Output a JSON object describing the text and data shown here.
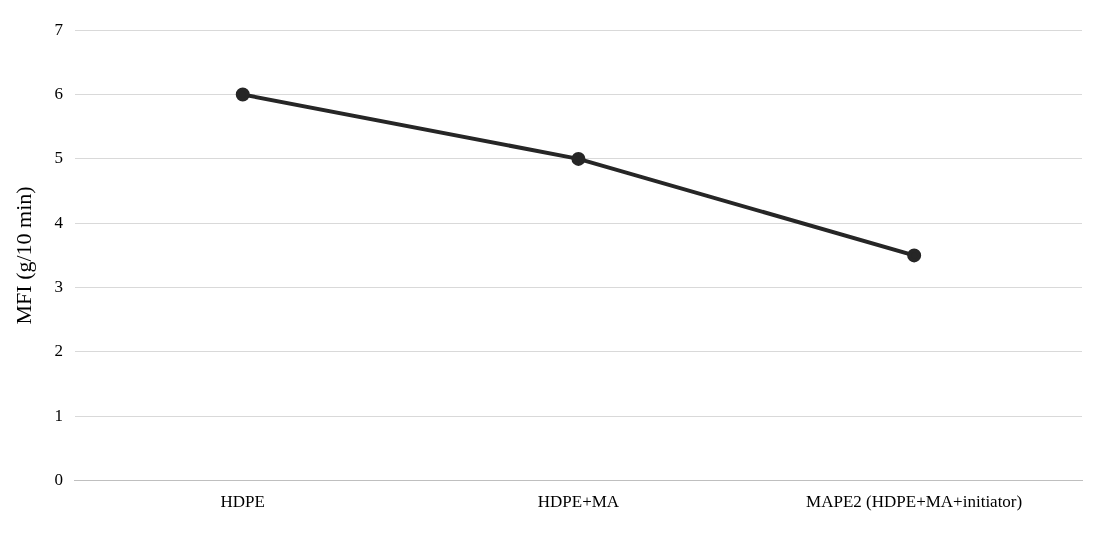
{
  "chart_data": {
    "type": "line",
    "ylabel": "MFI (g/10 min)",
    "categories": [
      "HDPE",
      "HDPE+MA",
      "MAPE2 (HDPE+MA+initiator)"
    ],
    "series": [
      {
        "color": "#262626",
        "values": [
          6,
          5,
          3.5
        ]
      }
    ],
    "ylim": [
      0,
      7
    ],
    "yticks": [
      0,
      1,
      2,
      3,
      4,
      5,
      6,
      7
    ],
    "grid": "y",
    "marker": "circle",
    "line_style": "solid",
    "legend": false
  }
}
